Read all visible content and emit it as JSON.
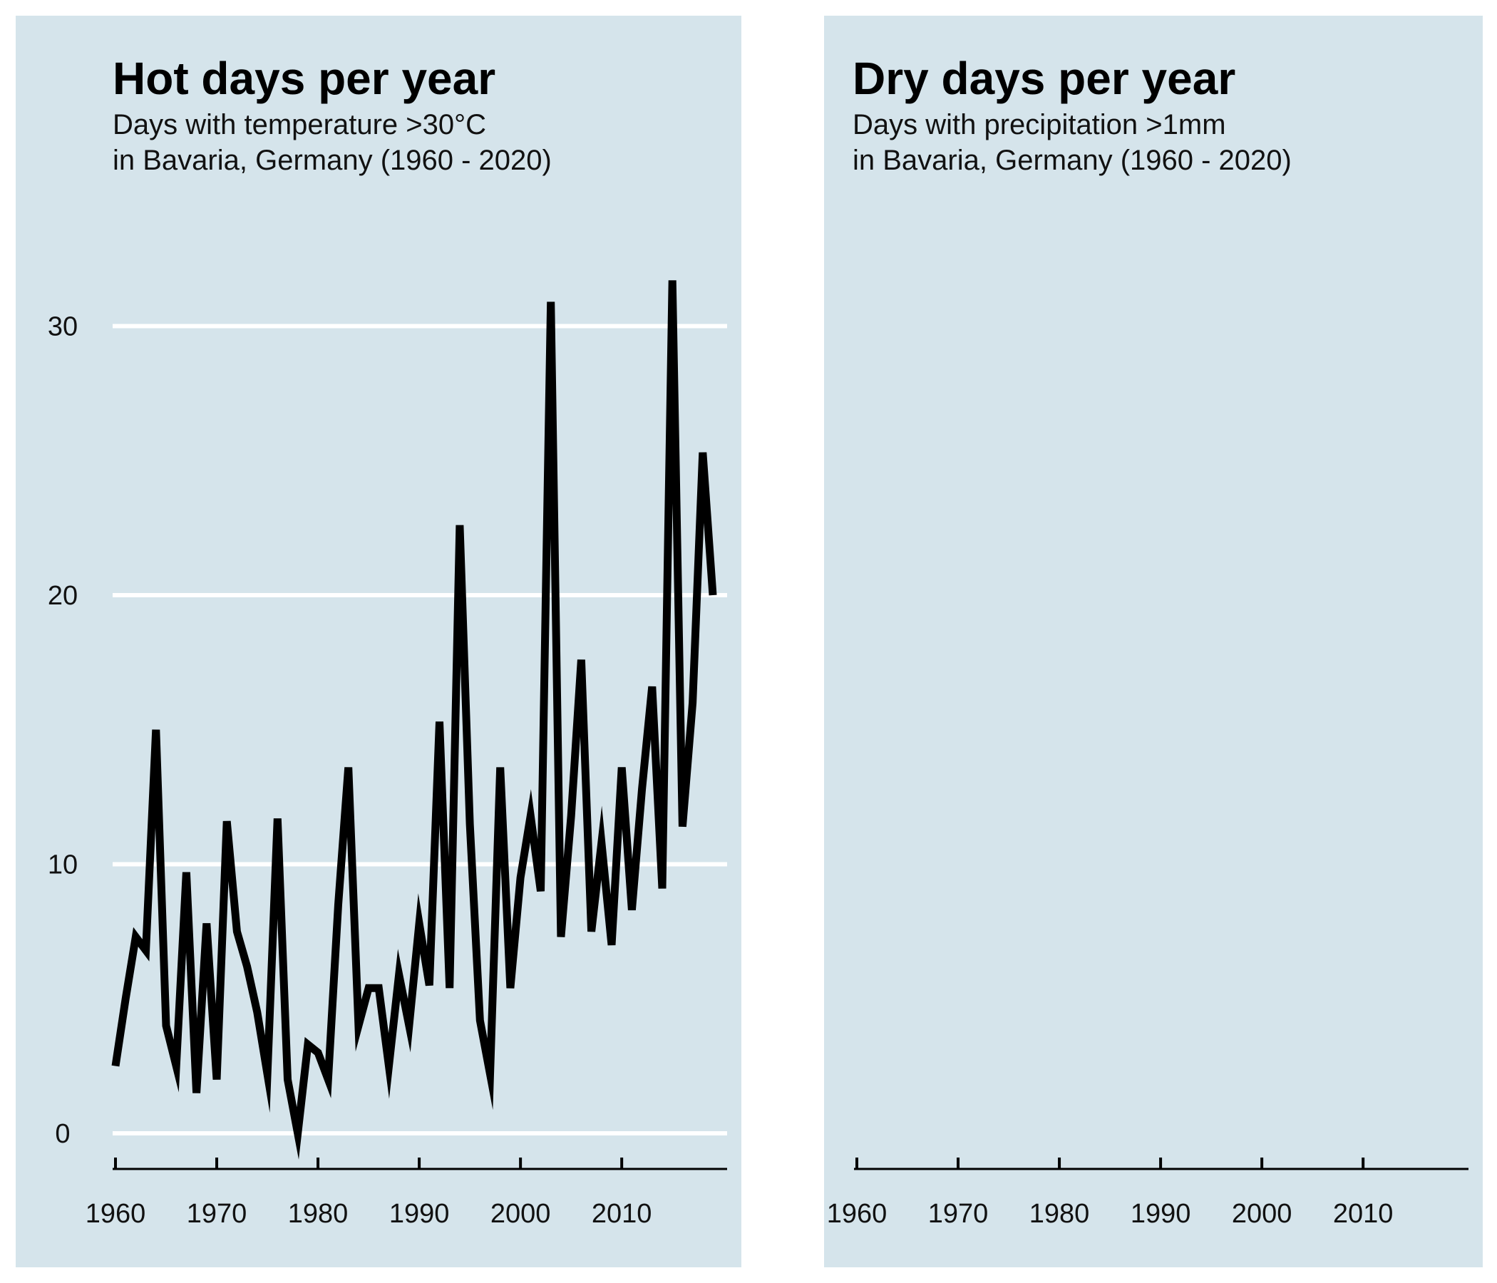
{
  "panels": [
    {
      "title": "Hot days per year",
      "subtitle_line1": "Days with temperature >30°C",
      "subtitle_line2": "in Bavaria, Germany (1960 - 2020)"
    },
    {
      "title": "Dry days per year",
      "subtitle_line1": "Days with precipitation >1mm",
      "subtitle_line2": "in Bavaria, Germany (1960 - 2020)"
    }
  ],
  "colors": {
    "panel_bg": "#d5e4eb",
    "line": "#000000",
    "grid": "#ffffff"
  },
  "chart_data": [
    {
      "type": "line",
      "title": "Hot days per year",
      "subtitle": "Days with temperature >30°C in Bavaria, Germany (1960 - 2020)",
      "xlabel": "",
      "ylabel": "",
      "xlim": [
        1960,
        2019
      ],
      "ylim": [
        0,
        32
      ],
      "xticks": [
        1960,
        1970,
        1980,
        1990,
        2000,
        2010
      ],
      "yticks": [
        0,
        10,
        20,
        30
      ],
      "grid": "horizontal",
      "series": [
        {
          "x": [
            1960,
            1961,
            1962,
            1963,
            1964,
            1965,
            1966,
            1967,
            1968,
            1969,
            1970,
            1971,
            1972,
            1973,
            1974,
            1975,
            1976,
            1977,
            1978,
            1979,
            1980,
            1981,
            1982,
            1983,
            1984,
            1985,
            1986,
            1987,
            1988,
            1989,
            1990,
            1991,
            1992,
            1993,
            1994,
            1995,
            1996,
            1997,
            1998,
            1999,
            2000,
            2001,
            2002,
            2003,
            2004,
            2005,
            2006,
            2007,
            2008,
            2009,
            2010,
            2011,
            2012,
            2013,
            2014,
            2015,
            2016,
            2017,
            2018,
            2019
          ],
          "values": [
            2.5,
            5.0,
            7.3,
            6.8,
            15.0,
            4.0,
            2.5,
            9.7,
            1.5,
            7.8,
            2.0,
            11.6,
            7.5,
            6.2,
            4.5,
            2.2,
            11.7,
            2.0,
            0.0,
            3.3,
            3.0,
            2.0,
            8.5,
            13.6,
            4.0,
            5.4,
            5.4,
            2.5,
            5.9,
            4.0,
            7.8,
            5.5,
            15.3,
            5.4,
            22.6,
            11.5,
            4.2,
            2.2,
            13.6,
            5.4,
            9.5,
            11.8,
            9.0,
            30.9,
            7.3,
            11.8,
            17.6,
            7.5,
            10.8,
            7.0,
            13.6,
            8.3,
            12.8,
            16.6,
            9.1,
            31.7,
            11.4,
            16.0,
            25.3,
            20.0
          ]
        }
      ]
    },
    {
      "type": "line",
      "title": "Dry days per year",
      "subtitle": "Days with precipitation >1mm in Bavaria, Germany (1960 - 2020)",
      "xlabel": "",
      "ylabel": "",
      "xlim": [
        1960,
        2019
      ],
      "xticks": [
        1960,
        1970,
        1980,
        1990,
        2000,
        2010
      ],
      "grid": "none",
      "series": []
    }
  ]
}
